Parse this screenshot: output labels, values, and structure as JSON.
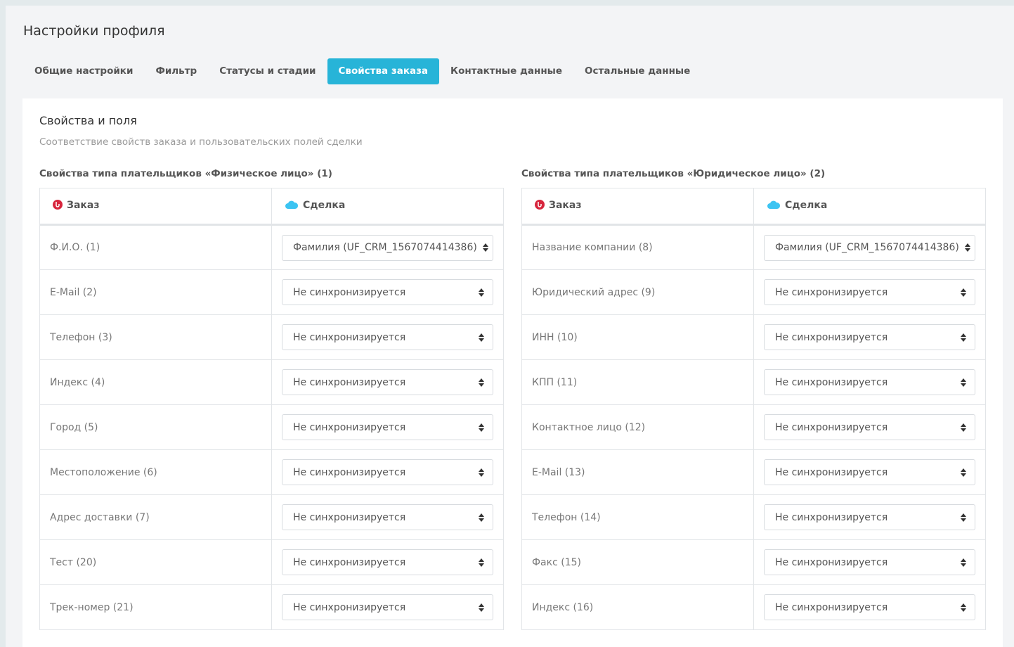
{
  "page_title": "Настройки профиля",
  "tabs": [
    {
      "label": "Общие настройки",
      "active": false
    },
    {
      "label": "Фильтр",
      "active": false
    },
    {
      "label": "Статусы и стадии",
      "active": false
    },
    {
      "label": "Свойства заказа",
      "active": true
    },
    {
      "label": "Контактные данные",
      "active": false
    },
    {
      "label": "Остальные данные",
      "active": false
    }
  ],
  "accent_color": "#27b4d8",
  "card": {
    "title": "Свойства и поля",
    "subtitle": "Соответствие свойств заказа и пользовательских полей сделки"
  },
  "sections": [
    {
      "title": "Свойства типа плательщиков «Физическое лицо» (1)",
      "col_order": "Заказ",
      "col_deal": "Сделка",
      "rows": [
        {
          "prop": "Ф.И.О. (1)",
          "value": "Фамилия (UF_CRM_1567074414386)"
        },
        {
          "prop": "E-Mail (2)",
          "value": "Не синхронизируется"
        },
        {
          "prop": "Телефон (3)",
          "value": "Не синхронизируется"
        },
        {
          "prop": "Индекс (4)",
          "value": "Не синхронизируется"
        },
        {
          "prop": "Город (5)",
          "value": "Не синхронизируется"
        },
        {
          "prop": "Местоположение (6)",
          "value": "Не синхронизируется"
        },
        {
          "prop": "Адрес доставки (7)",
          "value": "Не синхронизируется"
        },
        {
          "prop": "Тест (20)",
          "value": "Не синхронизируется"
        },
        {
          "prop": "Трек-номер (21)",
          "value": "Не синхронизируется"
        }
      ]
    },
    {
      "title": "Свойства типа плательщиков «Юридическое лицо» (2)",
      "col_order": "Заказ",
      "col_deal": "Сделка",
      "rows": [
        {
          "prop": "Название компании (8)",
          "value": "Фамилия (UF_CRM_1567074414386)"
        },
        {
          "prop": "Юридический адрес (9)",
          "value": "Не синхронизируется"
        },
        {
          "prop": "ИНН (10)",
          "value": "Не синхронизируется"
        },
        {
          "prop": "КПП (11)",
          "value": "Не синхронизируется"
        },
        {
          "prop": "Контактное лицо (12)",
          "value": "Не синхронизируется"
        },
        {
          "prop": "E-Mail (13)",
          "value": "Не синхронизируется"
        },
        {
          "prop": "Телефон (14)",
          "value": "Не синхронизируется"
        },
        {
          "prop": "Факс (15)",
          "value": "Не синхронизируется"
        },
        {
          "prop": "Индекс (16)",
          "value": "Не синхронизируется"
        }
      ]
    }
  ]
}
